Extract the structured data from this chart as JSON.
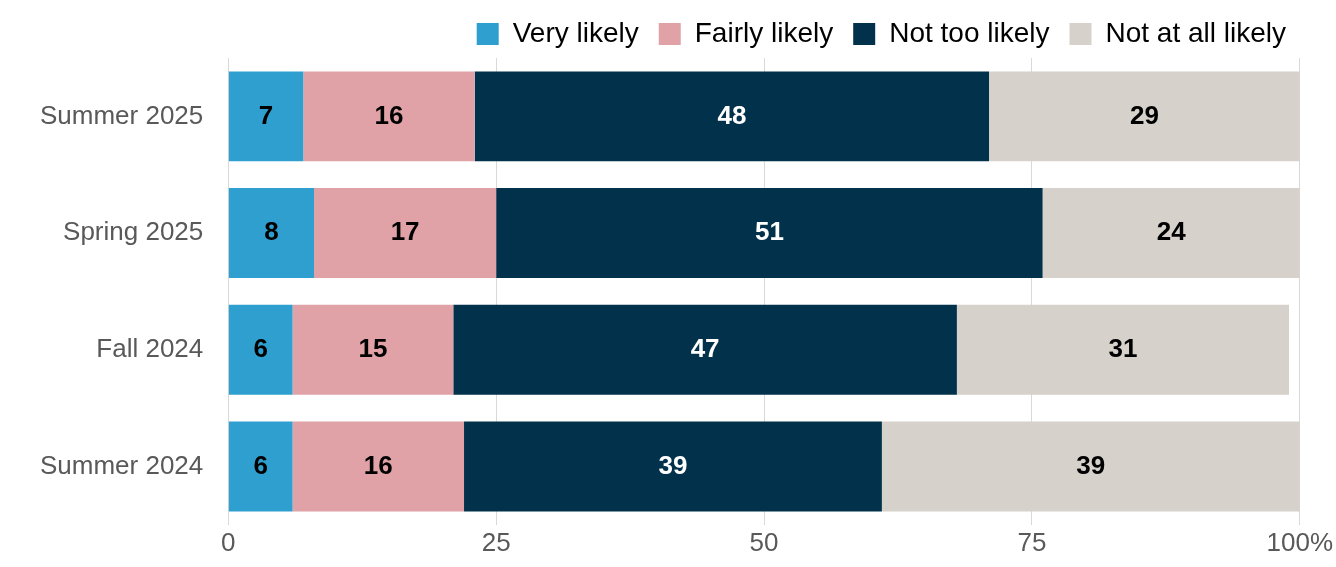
{
  "chart_data": {
    "type": "bar",
    "orientation": "horizontal",
    "stacked": true,
    "categories": [
      "Summer 2025",
      "Spring 2025",
      "Fall 2024",
      "Summer 2024"
    ],
    "series": [
      {
        "name": "Very likely",
        "color": "#2e9fcf",
        "values": [
          7,
          8,
          6,
          6
        ]
      },
      {
        "name": "Fairly likely",
        "color": "#e0a2a6",
        "values": [
          16,
          17,
          15,
          16
        ]
      },
      {
        "name": "Not too likely",
        "color": "#02324b",
        "values": [
          48,
          51,
          47,
          39
        ]
      },
      {
        "name": "Not at all likely",
        "color": "#d6d1cb",
        "values": [
          29,
          24,
          31,
          39
        ]
      }
    ],
    "xlim": [
      0,
      100
    ],
    "xticks": [
      0,
      25,
      50,
      75,
      {
        "value": 100,
        "label": "100%"
      }
    ],
    "grid": "x",
    "legend": "top",
    "data_labels": true
  }
}
